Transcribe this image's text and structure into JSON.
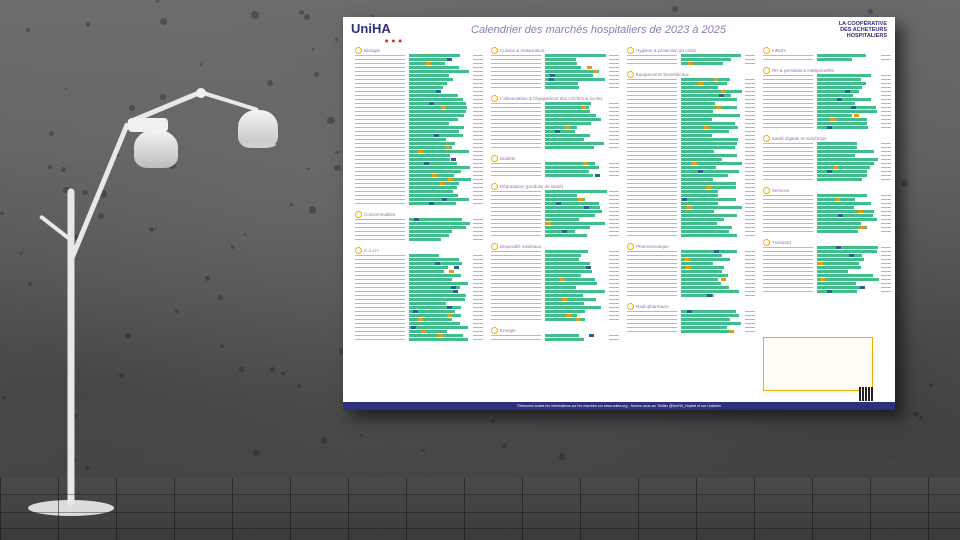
{
  "poster": {
    "logo": "UniHA",
    "title": "Calendrier des marchés hospitaliers de 2023 à 2025",
    "coop_line1": "LA COOPÉRATIVE",
    "coop_line2": "DES ACHETEURS",
    "coop_line3": "HOSPITALIERS",
    "footer": "Retrouvez toutes les informations sur les marchés sur www.uniha.org - Suivez-nous sur Twitter @UniHA_Hopital et sur LinkedIn",
    "sections": [
      {
        "title": "Biologie",
        "rows": 38
      },
      {
        "title": "Consommables",
        "rows": 6
      },
      {
        "title": "C.A.I.H.",
        "rows": 22
      },
      {
        "title": "Cuisine & restauration",
        "rows": 9
      },
      {
        "title": "L'alimentation & l'équipement des crèches & écoles",
        "rows": 12
      },
      {
        "title": "Diabète",
        "rows": 4
      },
      {
        "title": "Dégradation (produits de santé)",
        "rows": 12
      },
      {
        "title": "Dispositifs médicaux",
        "rows": 18
      },
      {
        "title": "Energie",
        "rows": 2
      },
      {
        "title": "Hygiène & protection du corps",
        "rows": 3
      },
      {
        "title": "Équipements biomédicaux",
        "rows": 40
      },
      {
        "title": "Pharmaceutique",
        "rows": 12
      },
      {
        "title": "Radiopharmacie",
        "rows": 6
      },
      {
        "title": "mRUH",
        "rows": 2
      },
      {
        "title": "RH & prestations intellectuelles",
        "rows": 14
      },
      {
        "title": "Santé digitale et numérique",
        "rows": 10
      },
      {
        "title": "Services",
        "rows": 10
      },
      {
        "title": "Transport",
        "rows": 12
      }
    ]
  }
}
